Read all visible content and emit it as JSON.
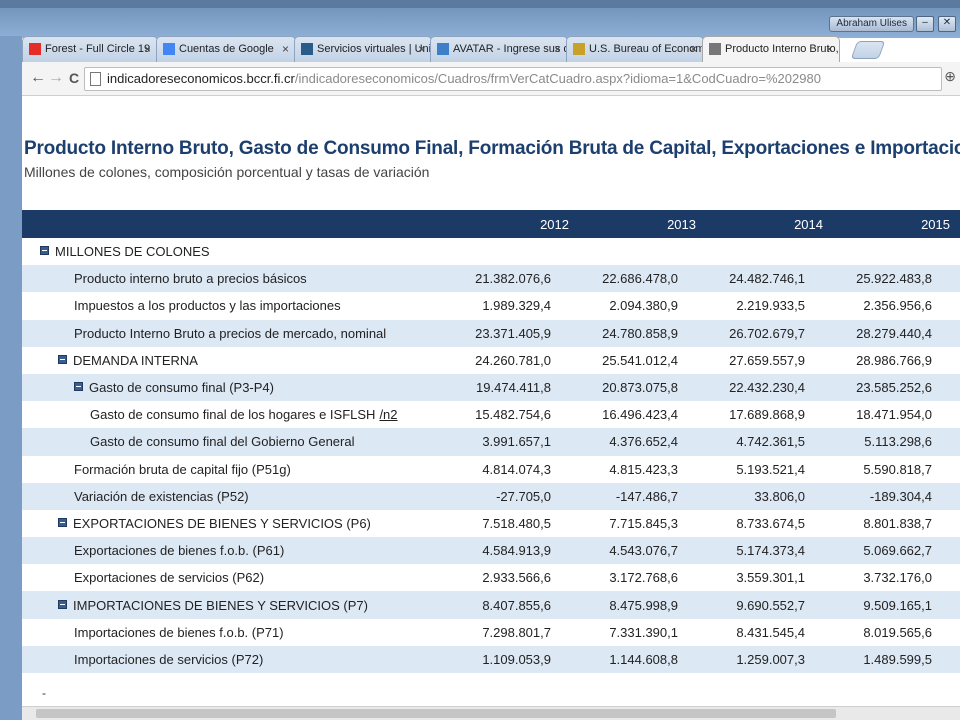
{
  "browser": {
    "user_badge": "Abraham Ulises",
    "minimize_glyph": "–",
    "close_glyph": "✕",
    "tabs": [
      {
        "title": "Forest - Full Circle 19",
        "icon": "youtube-icon",
        "icon_color": "#e52d27"
      },
      {
        "title": "Cuentas de Google",
        "icon": "google-icon",
        "icon_color": "#4285f4"
      },
      {
        "title": "Servicios virtuales | Unive",
        "icon": "university-icon",
        "icon_color": "#2a5c8a"
      },
      {
        "title": "AVATAR - Ingrese sus da",
        "icon": "avatar-icon",
        "icon_color": "#3d7fc9"
      },
      {
        "title": "U.S. Bureau of Economic",
        "icon": "bea-icon",
        "icon_color": "#c8a02a"
      },
      {
        "title": "Producto Interno Bruto, G",
        "icon": "page-icon",
        "icon_color": "#777777"
      }
    ],
    "tab_close": "×",
    "back": "←",
    "forward": "→",
    "reload": "C",
    "url_host": "indicadoreseconomicos.bccr.fi.cr",
    "url_path": "/indicadoreseconomicos/Cuadros/frmVerCatCuadro.aspx?idioma=1&CodCuadro=%202980",
    "zoom_icon": "⊕"
  },
  "page": {
    "title": "Producto Interno Bruto, Gasto de Consumo Final, Formación Bruta de Capital, Exportaciones e Importaciones",
    "subtitle": "Millones de colones, composición porcentual y tasas de variación",
    "bottom_mark": "-"
  },
  "table": {
    "years": [
      "2012",
      "2013",
      "2014",
      "2015"
    ],
    "rows": [
      {
        "label": "MILLONES DE COLONES",
        "level": 0,
        "toggle": true,
        "values": [
          "",
          "",
          "",
          ""
        ]
      },
      {
        "label": "Producto interno bruto a precios básicos",
        "level": 2,
        "toggle": false,
        "values": [
          "21.382.076,6",
          "22.686.478,0",
          "24.482.746,1",
          "25.922.483,8"
        ]
      },
      {
        "label": "Impuestos a los productos y las importaciones",
        "level": 2,
        "toggle": false,
        "values": [
          "1.989.329,4",
          "2.094.380,9",
          "2.219.933,5",
          "2.356.956,6"
        ]
      },
      {
        "label": "Producto Interno Bruto a precios de mercado, nominal",
        "level": 2,
        "toggle": false,
        "values": [
          "23.371.405,9",
          "24.780.858,9",
          "26.702.679,7",
          "28.279.440,4"
        ]
      },
      {
        "label": "DEMANDA INTERNA",
        "level": 1,
        "toggle": true,
        "values": [
          "24.260.781,0",
          "25.541.012,4",
          "27.659.557,9",
          "28.986.766,9"
        ]
      },
      {
        "label": "Gasto de consumo final (P3-P4)",
        "level": 2,
        "toggle": true,
        "values": [
          "19.474.411,8",
          "20.873.075,8",
          "22.432.230,4",
          "23.585.252,6"
        ]
      },
      {
        "label": "Gasto de consumo final de los hogares e ISFLSH",
        "note": "/n2",
        "level": 3,
        "toggle": false,
        "values": [
          "15.482.754,6",
          "16.496.423,4",
          "17.689.868,9",
          "18.471.954,0"
        ]
      },
      {
        "label": "Gasto de consumo final del Gobierno General",
        "level": 3,
        "toggle": false,
        "values": [
          "3.991.657,1",
          "4.376.652,4",
          "4.742.361,5",
          "5.113.298,6"
        ]
      },
      {
        "label": "Formación bruta de capital fijo (P51g)",
        "level": 2,
        "toggle": false,
        "values": [
          "4.814.074,3",
          "4.815.423,3",
          "5.193.521,4",
          "5.590.818,7"
        ]
      },
      {
        "label": "Variación de existencias (P52)",
        "level": 2,
        "toggle": false,
        "values": [
          "-27.705,0",
          "-147.486,7",
          "33.806,0",
          "-189.304,4"
        ]
      },
      {
        "label": "EXPORTACIONES DE BIENES Y SERVICIOS (P6)",
        "level": 1,
        "toggle": true,
        "values": [
          "7.518.480,5",
          "7.715.845,3",
          "8.733.674,5",
          "8.801.838,7"
        ]
      },
      {
        "label": "Exportaciones de bienes f.o.b. (P61)",
        "level": 2,
        "toggle": false,
        "values": [
          "4.584.913,9",
          "4.543.076,7",
          "5.174.373,4",
          "5.069.662,7"
        ]
      },
      {
        "label": "Exportaciones de servicios (P62)",
        "level": 2,
        "toggle": false,
        "values": [
          "2.933.566,6",
          "3.172.768,6",
          "3.559.301,1",
          "3.732.176,0"
        ]
      },
      {
        "label": "IMPORTACIONES DE BIENES Y SERVICIOS (P7)",
        "level": 1,
        "toggle": true,
        "values": [
          "8.407.855,6",
          "8.475.998,9",
          "9.690.552,7",
          "9.509.165,1"
        ]
      },
      {
        "label": "Importaciones de bienes f.o.b. (P71)",
        "level": 2,
        "toggle": false,
        "values": [
          "7.298.801,7",
          "7.331.390,1",
          "8.431.545,4",
          "8.019.565,6"
        ]
      },
      {
        "label": "Importaciones de servicios (P72)",
        "level": 2,
        "toggle": false,
        "values": [
          "1.109.053,9",
          "1.144.608,8",
          "1.259.007,3",
          "1.489.599,5"
        ]
      }
    ]
  },
  "colors": {
    "header_bg": "#1b3a66",
    "row_shade": "#dde8f5",
    "title": "#1d3f6e"
  }
}
